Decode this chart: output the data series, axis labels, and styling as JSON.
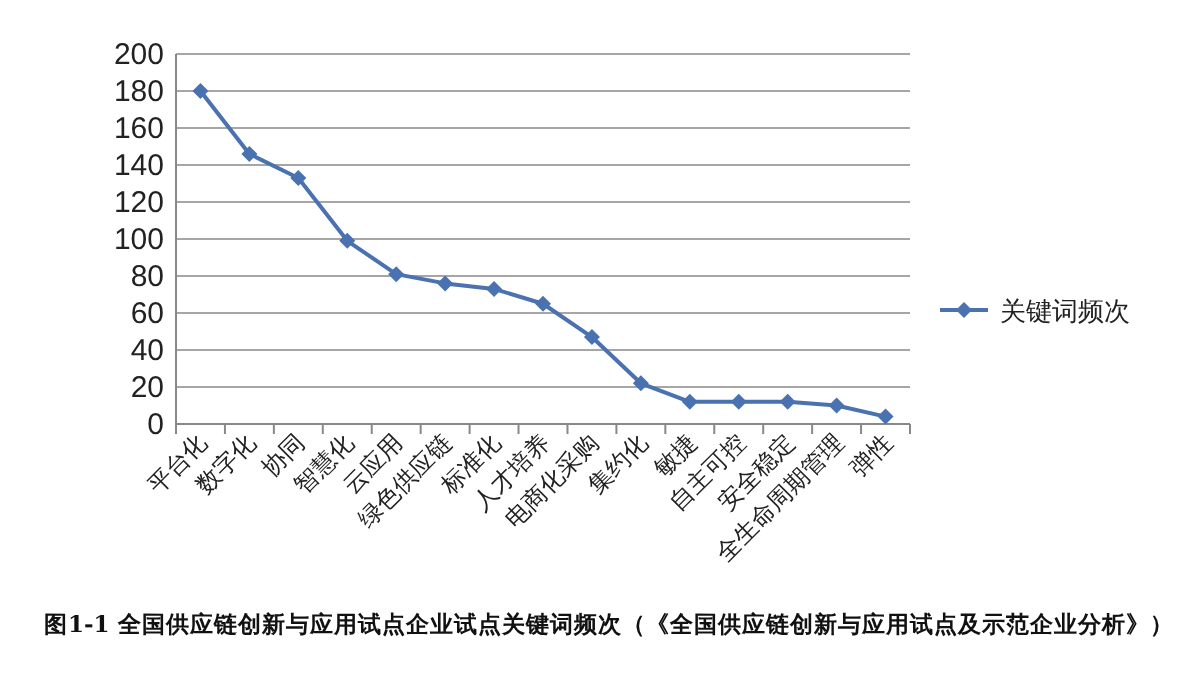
{
  "chart_data": {
    "type": "line",
    "categories": [
      "平台化",
      "数字化",
      "协同",
      "智慧化",
      "云应用",
      "绿色供应链",
      "标准化",
      "人才培养",
      "电商化采购",
      "集约化",
      "敏捷",
      "自主可控",
      "安全稳定",
      "全生命周期管理",
      "弹性"
    ],
    "series": [
      {
        "name": "关键词频次",
        "color": "#4a71b0",
        "values": [
          180,
          146,
          133,
          99,
          81,
          76,
          73,
          65,
          47,
          22,
          12,
          12,
          12,
          10,
          4
        ]
      }
    ],
    "ylim": [
      0,
      200
    ],
    "yticks": [
      0,
      20,
      40,
      60,
      80,
      100,
      120,
      140,
      160,
      180,
      200
    ],
    "grid": "y",
    "legend": "right",
    "marker": "diamond",
    "annotations": [
      "图1-1 全国供应链创新与应用试点企业试点关键词频次（《全国供应链创新与应用试点及示范企业分析》）"
    ]
  }
}
